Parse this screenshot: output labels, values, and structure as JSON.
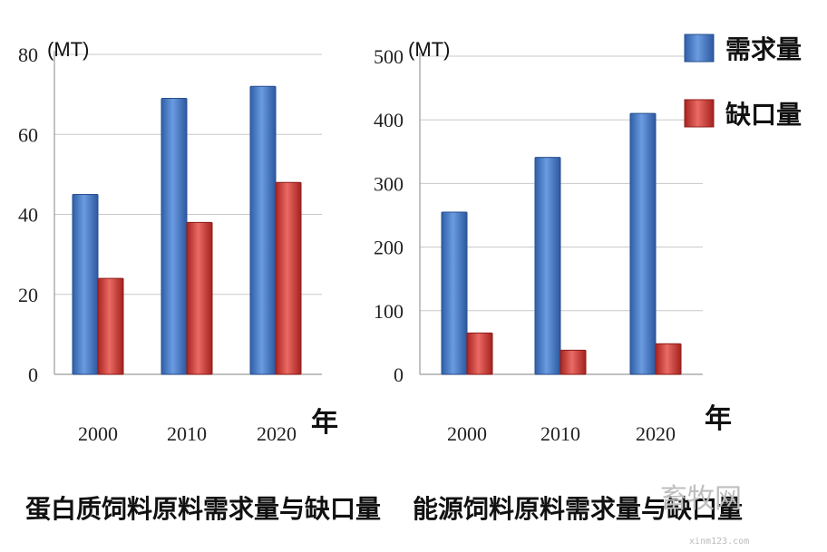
{
  "chart_data": [
    {
      "type": "bar",
      "title": "",
      "caption": "蛋白质饲料原料需求量与缺口量",
      "unit": "(MT)",
      "xlabel": "年",
      "ylabel": "",
      "categories": [
        "2000",
        "2010",
        "2020"
      ],
      "series": [
        {
          "name": "需求量",
          "values": [
            45,
            69,
            72
          ],
          "color": "#3d74c8"
        },
        {
          "name": "缺口量",
          "values": [
            24,
            38,
            48
          ],
          "color": "#d33a36"
        }
      ],
      "ylim": [
        0,
        80
      ],
      "yticks": [
        "0",
        "20",
        "40",
        "60",
        "80"
      ],
      "grid": true
    },
    {
      "type": "bar",
      "title": "",
      "caption": "能源饲料原料需求量与缺口量",
      "unit": "(MT)",
      "xlabel": "年",
      "ylabel": "",
      "categories": [
        "2000",
        "2010",
        "2020"
      ],
      "series": [
        {
          "name": "需求量",
          "values": [
            255,
            341,
            410
          ],
          "color": "#3d74c8"
        },
        {
          "name": "缺口量",
          "values": [
            65,
            38,
            48
          ],
          "color": "#d33a36"
        }
      ],
      "ylim": [
        0,
        500
      ],
      "yticks": [
        "0",
        "100",
        "200",
        "300",
        "400",
        "500"
      ],
      "grid": true
    }
  ],
  "legend": {
    "placement": "top-right",
    "items": [
      {
        "label": "需求量",
        "color": "#3d74c8"
      },
      {
        "label": "缺口量",
        "color": "#d33a36"
      }
    ]
  },
  "watermark": {
    "text": "畜牧网",
    "sub": "xinm123.com"
  }
}
